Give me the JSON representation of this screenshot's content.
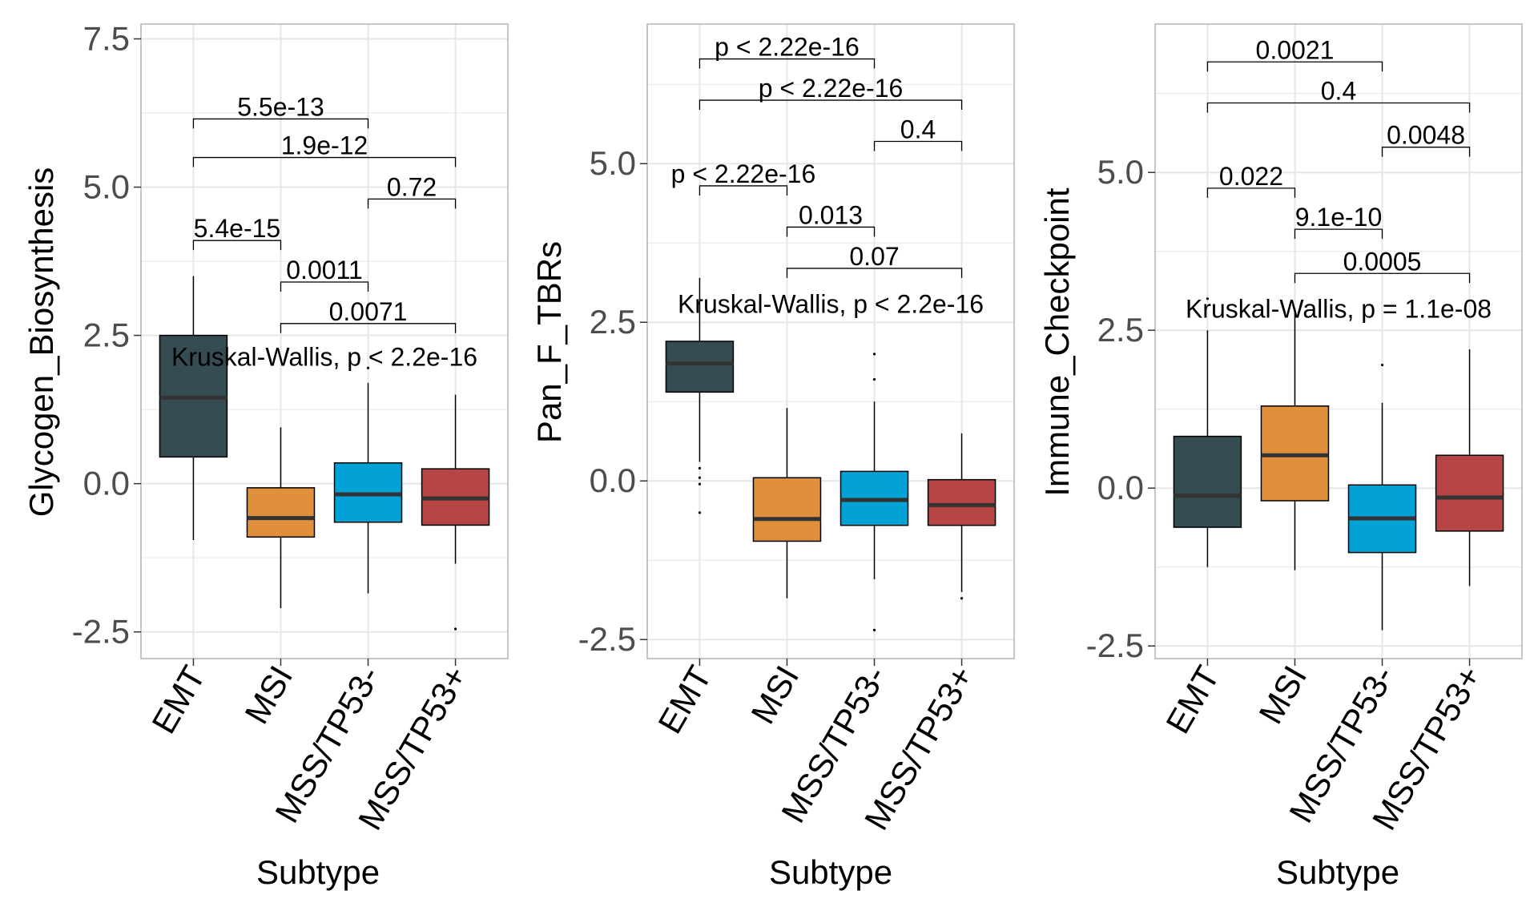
{
  "chart_data": [
    {
      "type": "box",
      "ylabel": "Glycogen_Biosynthesis",
      "xlabel": "Subtype",
      "categories": [
        "EMT",
        "MSI",
        "MSS/TP53-",
        "MSS/TP53+"
      ],
      "yticks": [
        -2.5,
        0.0,
        2.5,
        5.0,
        7.5
      ],
      "ytick_labels": [
        "-2.5",
        "0.0",
        "2.5",
        "5.0",
        "7.5"
      ],
      "ylim": [
        -2.95,
        7.75
      ],
      "grid": true,
      "boxes": [
        {
          "q1": 0.45,
          "median": 1.45,
          "q3": 2.5,
          "whisker_low": -0.95,
          "whisker_high": 3.5,
          "outliers": []
        },
        {
          "q1": -0.9,
          "median": -0.58,
          "q3": -0.07,
          "whisker_low": -2.1,
          "whisker_high": 0.95,
          "outliers": []
        },
        {
          "q1": -0.65,
          "median": -0.18,
          "q3": 0.35,
          "whisker_low": -1.85,
          "whisker_high": 1.7,
          "outliers": [
            1.95
          ]
        },
        {
          "q1": -0.7,
          "median": -0.25,
          "q3": 0.25,
          "whisker_low": -1.35,
          "whisker_high": 1.5,
          "outliers": [
            -2.45
          ]
        }
      ],
      "kruskal_label": "Kruskal-Wallis, p < 2.2e-16",
      "comparisons": [
        {
          "from": 0,
          "to": 2,
          "label": "5.5e-13",
          "y": 6.15
        },
        {
          "from": 0,
          "to": 3,
          "label": "1.9e-12",
          "y": 5.5
        },
        {
          "from": 2,
          "to": 3,
          "label": "0.72",
          "y": 4.8
        },
        {
          "from": 0,
          "to": 1,
          "label": "5.4e-15",
          "y": 4.1
        },
        {
          "from": 1,
          "to": 2,
          "label": "0.0011",
          "y": 3.4
        },
        {
          "from": 1,
          "to": 3,
          "label": "0.0071",
          "y": 2.7
        }
      ]
    },
    {
      "type": "box",
      "ylabel": "Pan_F_TBRs",
      "xlabel": "Subtype",
      "categories": [
        "EMT",
        "MSI",
        "MSS/TP53-",
        "MSS/TP53+"
      ],
      "yticks": [
        -2.5,
        0.0,
        2.5,
        5.0
      ],
      "ytick_labels": [
        "-2.5",
        "0.0",
        "2.5",
        "5.0"
      ],
      "ylim": [
        -2.8,
        7.2
      ],
      "grid": true,
      "boxes": [
        {
          "q1": 1.4,
          "median": 1.85,
          "q3": 2.2,
          "whisker_low": 0.3,
          "whisker_high": 3.2,
          "outliers": [
            0.2,
            0.05,
            -0.05,
            -0.5
          ]
        },
        {
          "q1": -0.95,
          "median": -0.6,
          "q3": 0.05,
          "whisker_low": -1.85,
          "whisker_high": 1.15,
          "outliers": []
        },
        {
          "q1": -0.7,
          "median": -0.3,
          "q3": 0.15,
          "whisker_low": -1.55,
          "whisker_high": 1.25,
          "outliers": [
            1.6,
            2.0,
            -2.35
          ]
        },
        {
          "q1": -0.7,
          "median": -0.38,
          "q3": 0.02,
          "whisker_low": -1.75,
          "whisker_high": 0.75,
          "outliers": [
            -1.85
          ]
        }
      ],
      "kruskal_label": "Kruskal-Wallis, p < 2.2e-16",
      "comparisons": [
        {
          "from": 0,
          "to": 2,
          "label": "p < 2.22e-16",
          "y": 6.65
        },
        {
          "from": 0,
          "to": 3,
          "label": "p < 2.22e-16",
          "y": 6.0
        },
        {
          "from": 2,
          "to": 3,
          "label": "0.4",
          "y": 5.35
        },
        {
          "from": 0,
          "to": 1,
          "label": "p < 2.22e-16",
          "y": 4.65
        },
        {
          "from": 1,
          "to": 2,
          "label": "0.013",
          "y": 4.0
        },
        {
          "from": 1,
          "to": 3,
          "label": "0.07",
          "y": 3.35
        }
      ]
    },
    {
      "type": "box",
      "ylabel": "Immune_Checkpoint",
      "xlabel": "Subtype",
      "categories": [
        "EMT",
        "MSI",
        "MSS/TP53-",
        "MSS/TP53+"
      ],
      "yticks": [
        -2.5,
        0.0,
        2.5,
        5.0
      ],
      "ytick_labels": [
        "-2.5",
        "0.0",
        "2.5",
        "5.0"
      ],
      "ylim": [
        -2.7,
        7.35
      ],
      "grid": true,
      "boxes": [
        {
          "q1": -0.62,
          "median": -0.12,
          "q3": 0.82,
          "whisker_low": -1.25,
          "whisker_high": 2.5,
          "outliers": [
            3.0
          ]
        },
        {
          "q1": -0.2,
          "median": 0.52,
          "q3": 1.3,
          "whisker_low": -1.3,
          "whisker_high": 2.85,
          "outliers": []
        },
        {
          "q1": -1.02,
          "median": -0.48,
          "q3": 0.05,
          "whisker_low": -2.25,
          "whisker_high": 1.35,
          "outliers": [
            1.95
          ]
        },
        {
          "q1": -0.68,
          "median": -0.15,
          "q3": 0.52,
          "whisker_low": -1.55,
          "whisker_high": 2.2,
          "outliers": []
        }
      ],
      "kruskal_label": "Kruskal-Wallis, p = 1.1e-08",
      "comparisons": [
        {
          "from": 0,
          "to": 2,
          "label": "0.0021",
          "y": 6.75
        },
        {
          "from": 0,
          "to": 3,
          "label": "0.4",
          "y": 6.1
        },
        {
          "from": 2,
          "to": 3,
          "label": "0.0048",
          "y": 5.4
        },
        {
          "from": 0,
          "to": 1,
          "label": "0.022",
          "y": 4.75
        },
        {
          "from": 1,
          "to": 2,
          "label": "9.1e-10",
          "y": 4.1
        },
        {
          "from": 1,
          "to": 3,
          "label": "0.0005",
          "y": 3.4
        }
      ]
    }
  ],
  "colors": {
    "boxes": [
      "#354C53",
      "#E08F3C",
      "#03A2D6",
      "#B64544"
    ],
    "median": "#333333",
    "grid": "#E6E6E6",
    "panel_border": "#B3B3B3",
    "tick_text": "#4D4D4D",
    "text": "#000000"
  }
}
